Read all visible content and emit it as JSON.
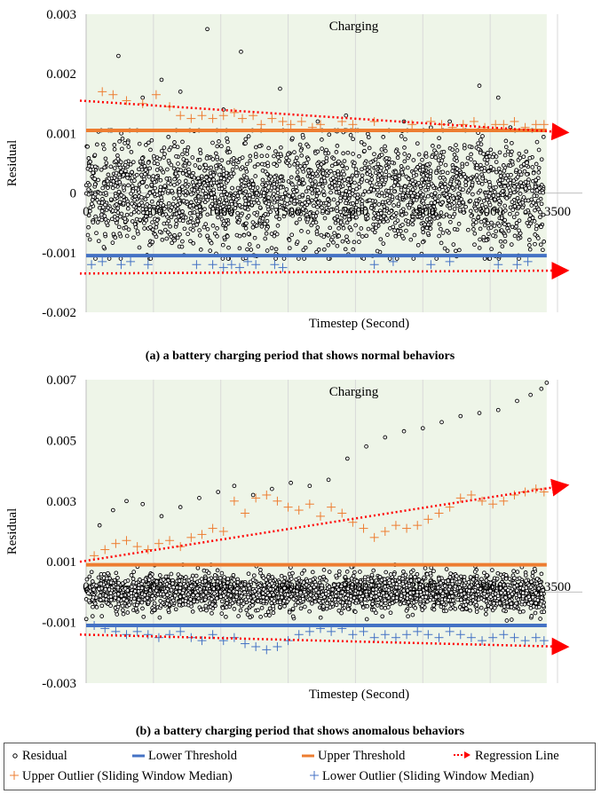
{
  "colors": {
    "plot_bg": "#eef5e8",
    "residual": "#000000",
    "lower_threshold": "#4472c4",
    "upper_threshold": "#ed7d31",
    "regression": "#ff0000",
    "upper_outlier": "#ed7d31",
    "lower_outlier": "#4472c4"
  },
  "icons": {
    "residual": "small-circle-icon",
    "threshold": "line-segment-icon",
    "regression": "dotted-arrow-icon",
    "outlier": "plus-marker-icon"
  },
  "captions": {
    "a": "(a) a battery charging period that shows normal behaviors",
    "b": "(b) a battery charging period that shows anomalous behaviors"
  },
  "legend": {
    "residual": "Residual",
    "lower_threshold": "Lower Threshold",
    "upper_threshold": "Upper Threshold",
    "regression": "Regression Line",
    "upper_outlier": "Upper Outlier (Sliding Window Median)",
    "lower_outlier": "Lower Outlier (Sliding Window Median)"
  },
  "chart_data": [
    {
      "type": "scatter",
      "title": "Charging",
      "xlabel": "Timestep (Second)",
      "ylabel": "Residual",
      "xlim": [
        0,
        3500
      ],
      "ylim": [
        -0.002,
        0.003
      ],
      "x_ticks": [
        "0",
        "500",
        "1000",
        "1500",
        "2000",
        "2500",
        "3000",
        "3500"
      ],
      "y_ticks": [
        "0.003",
        "0.002",
        "0.001",
        "0",
        "-0.001",
        "-0.002"
      ],
      "residual_spread": 0.0005,
      "upper_threshold": 0.00105,
      "lower_threshold": -0.00105,
      "regression_upper": {
        "x": [
          0,
          3500
        ],
        "y": [
          0.00155,
          0.00102
        ]
      },
      "regression_lower": {
        "x": [
          0,
          3500
        ],
        "y": [
          -0.00135,
          -0.0013
        ]
      },
      "residual_outliers": {
        "x": [
          240,
          420,
          560,
          700,
          900,
          1020,
          1150,
          1440,
          1720,
          1930,
          2360,
          2560,
          2700,
          2920,
          3060,
          3150
        ],
        "y": [
          0.0023,
          0.0016,
          0.0019,
          0.0017,
          0.00275,
          0.0014,
          0.00237,
          0.00175,
          0.0012,
          0.0013,
          0.0012,
          0.0011,
          0.0012,
          0.0018,
          0.0016,
          0.0011
        ]
      },
      "upper_outliers": {
        "x": [
          120,
          200,
          300,
          420,
          520,
          620,
          700,
          780,
          860,
          940,
          1020,
          1100,
          1160,
          1240,
          1300,
          1380,
          1460,
          1520,
          1600,
          1680,
          1740,
          1900,
          1980,
          2140,
          2420,
          2560,
          2640,
          2720,
          2800,
          2880,
          2960,
          3040,
          3100,
          3180,
          3260,
          3340,
          3400
        ],
        "y": [
          0.0017,
          0.00165,
          0.00155,
          0.0015,
          0.00165,
          0.00145,
          0.0013,
          0.00125,
          0.0013,
          0.00125,
          0.0013,
          0.00135,
          0.00125,
          0.0013,
          0.00115,
          0.00125,
          0.0012,
          0.00115,
          0.0012,
          0.0011,
          0.00115,
          0.0012,
          0.00115,
          0.0012,
          0.00115,
          0.0012,
          0.00115,
          0.0011,
          0.00115,
          0.0012,
          0.0011,
          0.00115,
          0.00115,
          0.0012,
          0.0011,
          0.00115,
          0.00115
        ]
      },
      "lower_outliers": {
        "x": [
          40,
          120,
          260,
          330,
          460,
          820,
          940,
          1020,
          1080,
          1140,
          1200,
          1260,
          1400,
          1460,
          2140,
          2280,
          2560,
          2700,
          3060,
          3200,
          3280
        ],
        "y": [
          -0.0012,
          -0.00115,
          -0.0012,
          -0.00115,
          -0.0012,
          -0.0012,
          -0.0012,
          -0.00125,
          -0.0012,
          -0.00125,
          -0.00115,
          -0.0012,
          -0.0012,
          -0.00125,
          -0.0012,
          -0.00115,
          -0.0012,
          -0.00115,
          -0.0012,
          -0.0012,
          -0.00115
        ]
      }
    },
    {
      "type": "scatter",
      "title": "Charging",
      "xlabel": "Timestep (Second)",
      "ylabel": "Residual",
      "xlim": [
        0,
        3500
      ],
      "ylim": [
        -0.003,
        0.007
      ],
      "x_ticks": [
        "0",
        "500",
        "1000",
        "1500",
        "2000",
        "2500",
        "3000",
        "3500"
      ],
      "y_ticks": [
        "0.007",
        "0.005",
        "0.003",
        "0.001",
        "-0.001",
        "-0.003"
      ],
      "residual_spread": 0.0004,
      "upper_threshold": 0.0009,
      "lower_threshold": -0.0011,
      "regression_upper": {
        "x": [
          0,
          3500
        ],
        "y": [
          0.001,
          0.0035
        ]
      },
      "regression_lower": {
        "x": [
          0,
          3500
        ],
        "y": [
          -0.0014,
          -0.0018
        ]
      },
      "residual_outliers": {
        "x": [
          100,
          200,
          300,
          420,
          560,
          700,
          840,
          980,
          1100,
          1240,
          1380,
          1520,
          1660,
          1800,
          1940,
          2080,
          2220,
          2360,
          2500,
          2640,
          2780,
          2920,
          3060,
          3200,
          3300,
          3380,
          3420
        ],
        "y": [
          0.0022,
          0.0027,
          0.003,
          0.0029,
          0.0025,
          0.0028,
          0.0031,
          0.0033,
          0.0035,
          0.0032,
          0.0034,
          0.0036,
          0.0035,
          0.0037,
          0.0044,
          0.0048,
          0.0051,
          0.0053,
          0.0054,
          0.0056,
          0.0058,
          0.0059,
          0.006,
          0.0063,
          0.0065,
          0.0067,
          0.0069
        ]
      },
      "upper_outliers": {
        "x": [
          60,
          140,
          220,
          300,
          380,
          460,
          540,
          620,
          700,
          780,
          860,
          940,
          1020,
          1100,
          1180,
          1260,
          1340,
          1420,
          1500,
          1580,
          1660,
          1740,
          1820,
          1900,
          1980,
          2060,
          2140,
          2220,
          2300,
          2380,
          2460,
          2540,
          2620,
          2700,
          2780,
          2860,
          2940,
          3020,
          3100,
          3180,
          3260,
          3340,
          3400
        ],
        "y": [
          0.0012,
          0.0014,
          0.0016,
          0.0017,
          0.0015,
          0.0014,
          0.0016,
          0.0017,
          0.0015,
          0.0018,
          0.0019,
          0.0021,
          0.002,
          0.003,
          0.0026,
          0.0031,
          0.0032,
          0.003,
          0.0028,
          0.0027,
          0.0029,
          0.0025,
          0.0028,
          0.0026,
          0.0023,
          0.0021,
          0.0018,
          0.002,
          0.0022,
          0.0021,
          0.0022,
          0.0024,
          0.0026,
          0.0028,
          0.0031,
          0.0032,
          0.003,
          0.0029,
          0.003,
          0.0032,
          0.0033,
          0.0034,
          0.0033
        ]
      },
      "lower_outliers": {
        "x": [
          60,
          140,
          220,
          300,
          380,
          460,
          540,
          620,
          700,
          780,
          860,
          940,
          1020,
          1100,
          1180,
          1260,
          1340,
          1420,
          1500,
          1580,
          1660,
          1740,
          1820,
          1900,
          1980,
          2060,
          2140,
          2220,
          2300,
          2380,
          2460,
          2540,
          2620,
          2700,
          2780,
          2860,
          2940,
          3020,
          3100,
          3180,
          3260,
          3340,
          3400
        ],
        "y": [
          -0.0011,
          -0.0012,
          -0.0013,
          -0.0014,
          -0.0013,
          -0.0014,
          -0.0015,
          -0.0014,
          -0.0013,
          -0.0015,
          -0.0016,
          -0.0014,
          -0.0016,
          -0.0015,
          -0.0017,
          -0.0018,
          -0.0019,
          -0.0018,
          -0.0016,
          -0.0014,
          -0.0013,
          -0.0012,
          -0.0013,
          -0.0012,
          -0.0014,
          -0.0013,
          -0.0015,
          -0.0014,
          -0.0015,
          -0.0014,
          -0.0013,
          -0.0014,
          -0.0015,
          -0.0013,
          -0.0014,
          -0.0015,
          -0.0016,
          -0.0015,
          -0.0014,
          -0.0015,
          -0.0016,
          -0.0015,
          -0.0016
        ]
      }
    }
  ]
}
